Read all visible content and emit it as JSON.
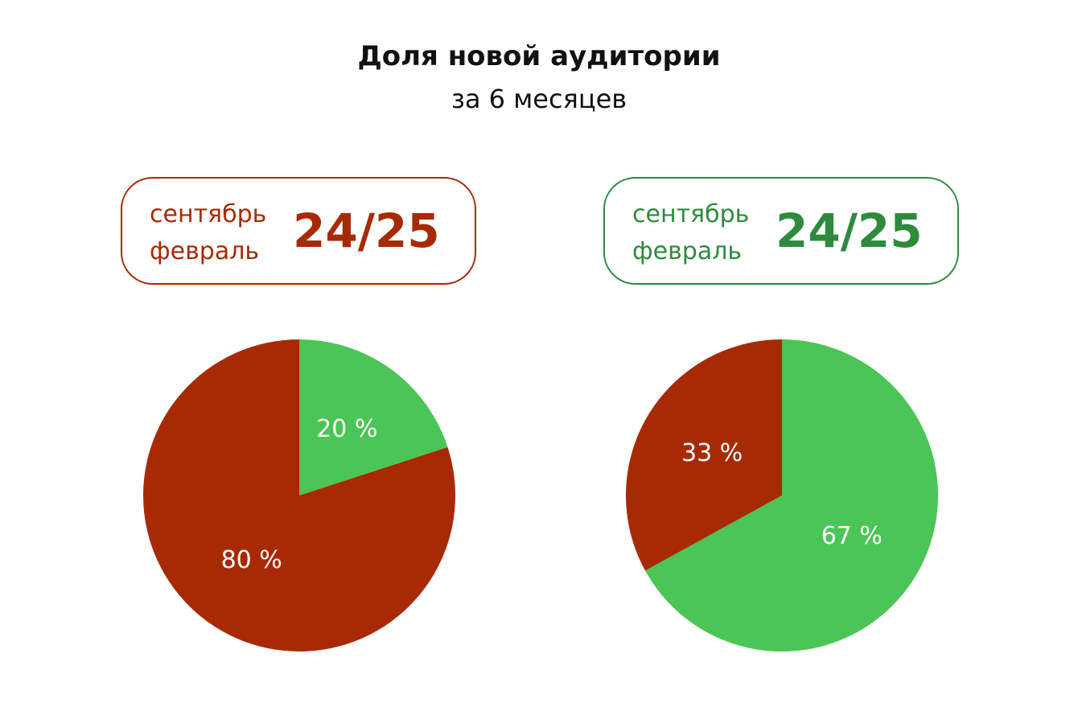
{
  "header": {
    "title": "Доля новой аудитории",
    "subtitle": "за 6 месяцев"
  },
  "colors": {
    "red": "#A82A05",
    "green": "#4BC555",
    "darkgreen": "#2E8B3E"
  },
  "panels": [
    {
      "line1": "сентябрь",
      "line2": "февраль",
      "period": "24/25",
      "accent": "red"
    },
    {
      "line1": "сентябрь",
      "line2": "февраль",
      "period": "24/25",
      "accent": "darkgreen"
    }
  ],
  "chart_data": [
    {
      "type": "pie",
      "categories": [
        "",
        ""
      ],
      "values": [
        20,
        80
      ],
      "labels": [
        "20 %",
        "80 %"
      ],
      "colors": [
        "#4BC555",
        "#A82A05"
      ],
      "start": "12 o'clock",
      "direction": "clockwise"
    },
    {
      "type": "pie",
      "categories": [
        "",
        ""
      ],
      "values": [
        67,
        33
      ],
      "labels": [
        "67 %",
        "33 %"
      ],
      "colors": [
        "#4BC555",
        "#A82A05"
      ],
      "start": "12 o'clock",
      "direction": "clockwise"
    }
  ]
}
